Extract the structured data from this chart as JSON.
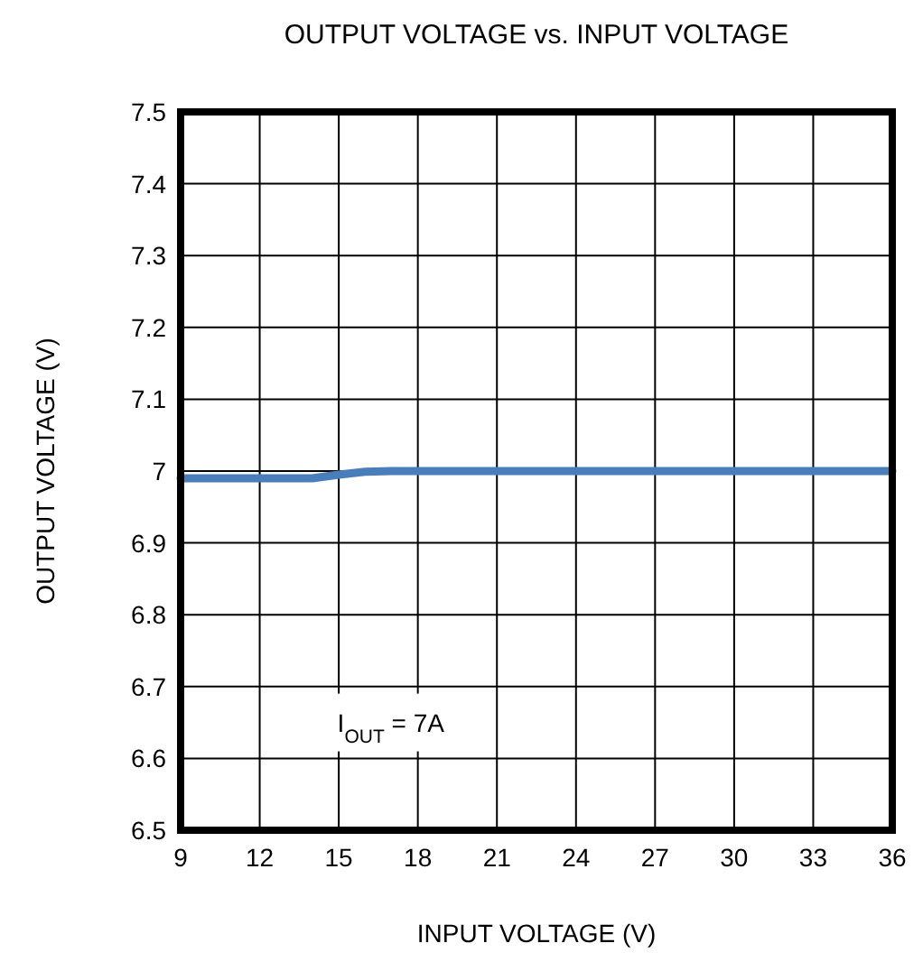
{
  "chart_data": {
    "type": "line",
    "title": "OUTPUT VOLTAGE vs. INPUT VOLTAGE",
    "xlabel": "INPUT VOLTAGE (V)",
    "ylabel": "OUTPUT VOLTAGE (V)",
    "x": [
      9,
      10,
      11,
      12,
      13,
      14,
      15,
      16,
      17,
      18,
      21,
      24,
      27,
      30,
      33,
      36
    ],
    "series": [
      {
        "color": "#4a7ebb",
        "values": [
          6.99,
          6.99,
          6.99,
          6.99,
          6.99,
          6.99,
          6.995,
          6.999,
          7.0,
          7.0,
          7.0,
          7.0,
          7.0,
          7.0,
          7.0,
          7.0
        ]
      }
    ],
    "xlim": [
      9,
      36
    ],
    "xticks": [
      9,
      12,
      15,
      18,
      21,
      24,
      27,
      30,
      33,
      36
    ],
    "ylim": [
      6.5,
      7.5
    ],
    "yticks": [
      6.5,
      6.6,
      6.7,
      6.8,
      6.9,
      7,
      7.1,
      7.2,
      7.3,
      7.4,
      7.5
    ],
    "grid": true,
    "marker": "none",
    "line_style": "solid",
    "annotations": [
      "I$_{OUT}$ = 7A"
    ]
  }
}
